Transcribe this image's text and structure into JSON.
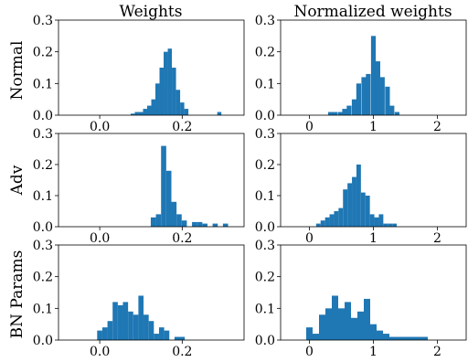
{
  "column_titles": [
    "Weights",
    "Normalized weights"
  ],
  "row_labels": [
    "Normal",
    "Adv",
    "BN Params"
  ],
  "colors": {
    "bar": "#1f77b4",
    "axes": "#000000"
  },
  "chart_data": [
    {
      "type": "bar",
      "row": "Normal",
      "column": "Weights",
      "xlim": [
        -0.1,
        0.35
      ],
      "ylim": [
        0,
        0.3
      ],
      "xticks": [
        0.0,
        0.2
      ],
      "xtick_labels": [
        "0.0",
        "0.2"
      ],
      "yticks": [
        0.0,
        0.1,
        0.2,
        0.3
      ],
      "ytick_labels": [
        "0.0",
        "0.1",
        "0.2",
        "0.3"
      ],
      "bin_width": 0.01,
      "bins": [
        [
          0.08,
          0.005
        ],
        [
          0.09,
          0.01
        ],
        [
          0.1,
          0.01
        ],
        [
          0.11,
          0.02
        ],
        [
          0.12,
          0.03
        ],
        [
          0.13,
          0.05
        ],
        [
          0.14,
          0.1
        ],
        [
          0.15,
          0.15
        ],
        [
          0.16,
          0.2
        ],
        [
          0.17,
          0.21
        ],
        [
          0.18,
          0.15
        ],
        [
          0.19,
          0.08
        ],
        [
          0.2,
          0.04
        ],
        [
          0.21,
          0.02
        ],
        [
          0.29,
          0.01
        ]
      ]
    },
    {
      "type": "bar",
      "row": "Normal",
      "column": "Normalized weights",
      "xlim": [
        -0.45,
        2.45
      ],
      "ylim": [
        0,
        0.3
      ],
      "xticks": [
        0,
        1,
        2
      ],
      "xtick_labels": [
        "0",
        "1",
        "2"
      ],
      "yticks": [
        0.0,
        0.1,
        0.2,
        0.3
      ],
      "ytick_labels": [
        "0.0",
        "0.1",
        "0.2",
        "0.3"
      ],
      "bin_width": 0.074,
      "bins": [
        [
          0.33,
          0.01
        ],
        [
          0.4,
          0.01
        ],
        [
          0.48,
          0.01
        ],
        [
          0.55,
          0.02
        ],
        [
          0.62,
          0.03
        ],
        [
          0.7,
          0.05
        ],
        [
          0.77,
          0.1
        ],
        [
          0.85,
          0.12
        ],
        [
          0.92,
          0.13
        ],
        [
          1.0,
          0.25
        ],
        [
          1.07,
          0.17
        ],
        [
          1.14,
          0.12
        ],
        [
          1.22,
          0.09
        ],
        [
          1.29,
          0.03
        ],
        [
          1.37,
          0.01
        ]
      ]
    },
    {
      "type": "bar",
      "row": "Adv",
      "column": "Weights",
      "xlim": [
        -0.1,
        0.35
      ],
      "ylim": [
        0,
        0.3
      ],
      "xticks": [
        0.0,
        0.2
      ],
      "xtick_labels": [
        "0.0",
        "0.2"
      ],
      "yticks": [
        0.0,
        0.1,
        0.2,
        0.3
      ],
      "ytick_labels": [
        "0.0",
        "0.1",
        "0.2",
        "0.3"
      ],
      "bin_width": 0.0125,
      "bins": [
        [
          0.13,
          0.03
        ],
        [
          0.1425,
          0.04
        ],
        [
          0.155,
          0.26
        ],
        [
          0.1675,
          0.18
        ],
        [
          0.18,
          0.08
        ],
        [
          0.1925,
          0.04
        ],
        [
          0.205,
          0.02
        ],
        [
          0.23,
          0.015
        ],
        [
          0.2425,
          0.015
        ],
        [
          0.255,
          0.01
        ],
        [
          0.28,
          0.01
        ],
        [
          0.305,
          0.01
        ]
      ]
    },
    {
      "type": "bar",
      "row": "Adv",
      "column": "Normalized weights",
      "xlim": [
        -0.45,
        2.45
      ],
      "ylim": [
        0,
        0.3
      ],
      "xticks": [
        0,
        1,
        2
      ],
      "xtick_labels": [
        "0",
        "1",
        "2"
      ],
      "yticks": [
        0.0,
        0.1,
        0.2,
        0.3
      ],
      "ytick_labels": [
        "0.0",
        "0.1",
        "0.2",
        "0.3"
      ],
      "bin_width": 0.07,
      "bins": [
        [
          0.14,
          0.01
        ],
        [
          0.21,
          0.02
        ],
        [
          0.28,
          0.03
        ],
        [
          0.35,
          0.04
        ],
        [
          0.42,
          0.05
        ],
        [
          0.49,
          0.06
        ],
        [
          0.56,
          0.12
        ],
        [
          0.63,
          0.14
        ],
        [
          0.7,
          0.16
        ],
        [
          0.77,
          0.2
        ],
        [
          0.84,
          0.11
        ],
        [
          0.91,
          0.1
        ],
        [
          0.98,
          0.04
        ],
        [
          1.05,
          0.03
        ],
        [
          1.12,
          0.04
        ],
        [
          1.19,
          0.01
        ],
        [
          1.26,
          0.01
        ],
        [
          1.33,
          0.01
        ]
      ]
    },
    {
      "type": "bar",
      "row": "BN Params",
      "column": "Weights",
      "xlim": [
        -0.1,
        0.35
      ],
      "ylim": [
        0,
        0.3
      ],
      "xticks": [
        0.0,
        0.2
      ],
      "xtick_labels": [
        "0.0",
        "0.2"
      ],
      "yticks": [
        0.0,
        0.1,
        0.2,
        0.3
      ],
      "ytick_labels": [
        "0.0",
        "0.1",
        "0.2",
        "0.3"
      ],
      "bin_width": 0.0125,
      "bins": [
        [
          0.0,
          0.03
        ],
        [
          0.0125,
          0.04
        ],
        [
          0.025,
          0.06
        ],
        [
          0.0375,
          0.12
        ],
        [
          0.05,
          0.11
        ],
        [
          0.0625,
          0.12
        ],
        [
          0.075,
          0.09
        ],
        [
          0.0875,
          0.08
        ],
        [
          0.1,
          0.14
        ],
        [
          0.1125,
          0.08
        ],
        [
          0.125,
          0.06
        ],
        [
          0.1375,
          0.02
        ],
        [
          0.15,
          0.04
        ],
        [
          0.1625,
          0.03
        ],
        [
          0.1875,
          0.01
        ],
        [
          0.2,
          0.01
        ]
      ]
    },
    {
      "type": "bar",
      "row": "BN Params",
      "column": "Normalized weights",
      "xlim": [
        -0.45,
        2.45
      ],
      "ylim": [
        0,
        0.3
      ],
      "xticks": [
        0,
        1,
        2
      ],
      "xtick_labels": [
        "0",
        "1",
        "2"
      ],
      "yticks": [
        0.0,
        0.1,
        0.2,
        0.3
      ],
      "ytick_labels": [
        "0.0",
        "0.1",
        "0.2",
        "0.3"
      ],
      "bin_width": 0.1,
      "bins": [
        [
          0.0,
          0.04
        ],
        [
          0.1,
          0.02
        ],
        [
          0.2,
          0.08
        ],
        [
          0.3,
          0.1
        ],
        [
          0.4,
          0.14
        ],
        [
          0.5,
          0.1
        ],
        [
          0.6,
          0.12
        ],
        [
          0.7,
          0.07
        ],
        [
          0.8,
          0.09
        ],
        [
          0.9,
          0.13
        ],
        [
          1.0,
          0.05
        ],
        [
          1.1,
          0.03
        ],
        [
          1.2,
          0.02
        ],
        [
          1.3,
          0.01
        ],
        [
          1.4,
          0.01
        ],
        [
          1.5,
          0.01
        ],
        [
          1.6,
          0.01
        ],
        [
          1.7,
          0.01
        ],
        [
          1.8,
          0.01
        ]
      ]
    }
  ]
}
